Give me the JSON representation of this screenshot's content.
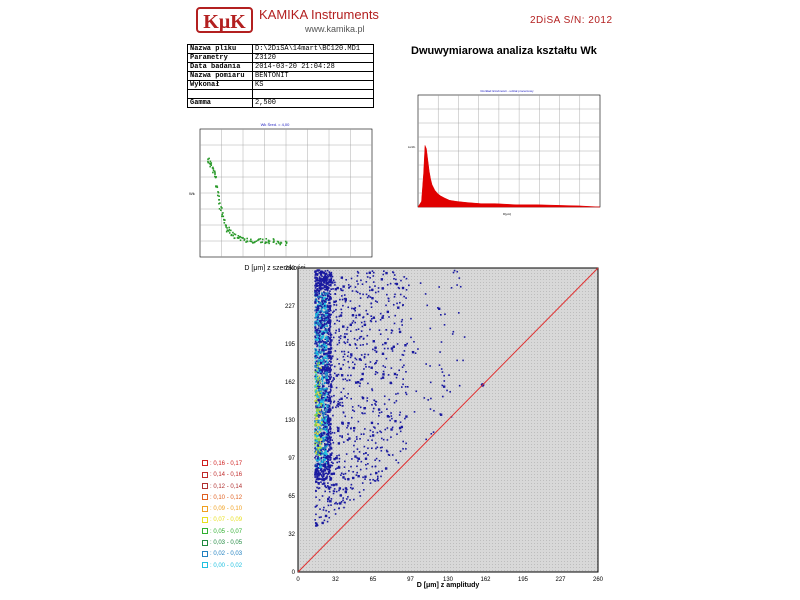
{
  "header": {
    "logo_text": "KμK",
    "company": "KAMIKA Instruments",
    "website": "www.kamika.pl",
    "serial": "2DiSA S/N: 2012",
    "colors": {
      "brand": "#b32020"
    }
  },
  "info_table": {
    "rows": [
      {
        "key": "Nazwa pliku",
        "value": "D:\\2DiSA\\14mart\\BC120.MD1"
      },
      {
        "key": "Parametry",
        "value": "Z3120"
      },
      {
        "key": "Data badania",
        "value": "2014-03-20 21:04:28"
      },
      {
        "key": "Nazwa pomiaru",
        "value": "BENTONIT"
      },
      {
        "key": "Wykonał",
        "value": "KS"
      },
      {
        "key": "",
        "value": ""
      },
      {
        "key": "Gamma",
        "value": "2,500"
      }
    ]
  },
  "main_title": "Dwuwymiarowa analiza kształtu Wk",
  "chart_data": [
    {
      "type": "scatter",
      "title": "Wk Śred. = 4,00",
      "xlabel": "D [μm] z szerokości",
      "ylabel": "Wk",
      "xlim": [
        0,
        260
      ],
      "ylim": [
        0,
        10
      ],
      "grid": true,
      "color": "#2a9a2a",
      "x": [
        12,
        14,
        16,
        18,
        20,
        22,
        24,
        26,
        28,
        30,
        32,
        35,
        38,
        41,
        44,
        48,
        52,
        56,
        60,
        65,
        70,
        75,
        80,
        86,
        92,
        98,
        104,
        110,
        116,
        122,
        128
      ],
      "y": [
        7.6,
        7.4,
        7.2,
        7.0,
        6.7,
        6.2,
        5.6,
        5.0,
        4.4,
        3.9,
        3.4,
        2.9,
        2.5,
        2.2,
        2.0,
        1.8,
        1.7,
        1.6,
        1.5,
        1.45,
        1.4,
        1.4,
        1.35,
        1.35,
        1.3,
        1.3,
        1.3,
        1.3,
        1.2,
        1.2,
        1.1
      ]
    },
    {
      "type": "area",
      "title": "Rozkład liczebności - udział procentowy",
      "xlabel": "D[μm]",
      "ylabel": "Liczb.",
      "xlim": [
        0,
        260
      ],
      "ylim": [
        0,
        10
      ],
      "grid": true,
      "color": "#e00000",
      "x": [
        0,
        5,
        8,
        10,
        12,
        14,
        16,
        18,
        20,
        24,
        28,
        32,
        38,
        45,
        55,
        70,
        90,
        110,
        140,
        170,
        200,
        230,
        260
      ],
      "y": [
        0,
        0.5,
        3,
        5.5,
        5.2,
        4.2,
        3.2,
        2.5,
        2.0,
        1.5,
        1.2,
        1.0,
        0.8,
        0.6,
        0.5,
        0.4,
        0.3,
        0.3,
        0.2,
        0.2,
        0.15,
        0.1,
        0
      ]
    },
    {
      "type": "heatmap",
      "xlabel": "D [μm] z amplitudy",
      "ylabel": "",
      "xlim": [
        0,
        260
      ],
      "ylim": [
        0,
        260
      ],
      "xticks": [
        "0",
        "32",
        "65",
        "97",
        "130",
        "162",
        "195",
        "227",
        "260"
      ],
      "yticks": [
        "0",
        "32",
        "65",
        "97",
        "130",
        "162",
        "195",
        "227",
        "260"
      ],
      "diagonal": true,
      "colors": {
        "background": "#d9d9d9",
        "diagonal": "#e03030",
        "points": "#1a1aa0"
      },
      "legend": [
        {
          "label": "0,16 - 0,17",
          "color": "#d02020"
        },
        {
          "label": "0,14 - 0,16",
          "color": "#c02a2a"
        },
        {
          "label": "0,12 - 0,14",
          "color": "#b03030"
        },
        {
          "label": "0,10 - 0,12",
          "color": "#e06020"
        },
        {
          "label": "0,09 - 0,10",
          "color": "#f0a020"
        },
        {
          "label": "0,07 - 0,09",
          "color": "#e8e020"
        },
        {
          "label": "0,05 - 0,07",
          "color": "#30b030"
        },
        {
          "label": "0,03 - 0,05",
          "color": "#208a40"
        },
        {
          "label": "0,02 - 0,03",
          "color": "#2080c0"
        },
        {
          "label": "0,00 - 0,02",
          "color": "#20c0e0"
        }
      ]
    }
  ]
}
